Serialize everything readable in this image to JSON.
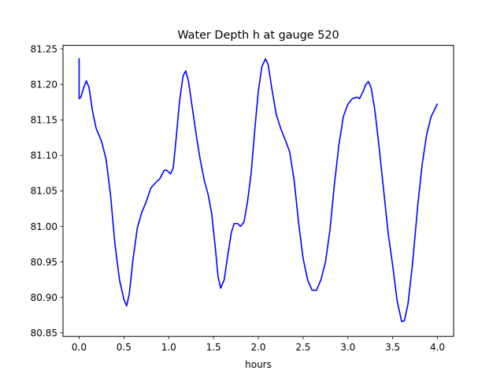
{
  "chart_data": {
    "type": "line",
    "title": "Water Depth h at gauge 520",
    "xlabel": "hours",
    "ylabel": "",
    "xlim": [
      -0.18,
      4.18
    ],
    "ylim": [
      80.845,
      81.255
    ],
    "x_ticks": [
      0,
      0.5,
      1,
      1.5,
      2,
      2.5,
      3,
      3.5,
      4
    ],
    "x_tick_labels": [
      "0.0",
      "0.5",
      "1.0",
      "1.5",
      "2.0",
      "2.5",
      "3.0",
      "3.5",
      "4.0"
    ],
    "y_ticks": [
      80.85,
      80.9,
      80.95,
      81.0,
      81.05,
      81.1,
      81.15,
      81.2,
      81.25
    ],
    "y_tick_labels": [
      "80.85",
      "80.90",
      "80.95",
      "81.00",
      "81.05",
      "81.10",
      "81.15",
      "81.20",
      "81.25"
    ],
    "grid": false,
    "legend": "none",
    "series": [
      {
        "color": "#0000ff",
        "points": [
          [
            0.0,
            81.237
          ],
          [
            0.0,
            81.18
          ],
          [
            0.02,
            81.182
          ],
          [
            0.05,
            81.195
          ],
          [
            0.08,
            81.205
          ],
          [
            0.11,
            81.196
          ],
          [
            0.15,
            81.162
          ],
          [
            0.19,
            81.138
          ],
          [
            0.25,
            81.12
          ],
          [
            0.3,
            81.095
          ],
          [
            0.35,
            81.045
          ],
          [
            0.4,
            80.975
          ],
          [
            0.45,
            80.925
          ],
          [
            0.5,
            80.897
          ],
          [
            0.53,
            80.888
          ],
          [
            0.56,
            80.905
          ],
          [
            0.6,
            80.952
          ],
          [
            0.65,
            80.998
          ],
          [
            0.7,
            81.02
          ],
          [
            0.75,
            81.035
          ],
          [
            0.8,
            81.054
          ],
          [
            0.85,
            81.061
          ],
          [
            0.9,
            81.067
          ],
          [
            0.95,
            81.079
          ],
          [
            0.98,
            81.079
          ],
          [
            1.02,
            81.074
          ],
          [
            1.05,
            81.082
          ],
          [
            1.08,
            81.12
          ],
          [
            1.12,
            81.175
          ],
          [
            1.16,
            81.212
          ],
          [
            1.19,
            81.219
          ],
          [
            1.22,
            81.205
          ],
          [
            1.26,
            81.17
          ],
          [
            1.3,
            81.135
          ],
          [
            1.35,
            81.095
          ],
          [
            1.4,
            81.063
          ],
          [
            1.44,
            81.045
          ],
          [
            1.48,
            81.018
          ],
          [
            1.52,
            80.97
          ],
          [
            1.55,
            80.93
          ],
          [
            1.58,
            80.913
          ],
          [
            1.62,
            80.925
          ],
          [
            1.66,
            80.96
          ],
          [
            1.7,
            80.992
          ],
          [
            1.73,
            81.004
          ],
          [
            1.77,
            81.004
          ],
          [
            1.8,
            81.0
          ],
          [
            1.84,
            81.006
          ],
          [
            1.88,
            81.035
          ],
          [
            1.92,
            81.075
          ],
          [
            1.96,
            81.135
          ],
          [
            2.0,
            81.19
          ],
          [
            2.04,
            81.225
          ],
          [
            2.08,
            81.236
          ],
          [
            2.11,
            81.228
          ],
          [
            2.15,
            81.195
          ],
          [
            2.2,
            81.158
          ],
          [
            2.25,
            81.138
          ],
          [
            2.3,
            81.122
          ],
          [
            2.35,
            81.105
          ],
          [
            2.4,
            81.065
          ],
          [
            2.45,
            81.005
          ],
          [
            2.5,
            80.955
          ],
          [
            2.55,
            80.925
          ],
          [
            2.6,
            80.91
          ],
          [
            2.65,
            80.91
          ],
          [
            2.7,
            80.925
          ],
          [
            2.75,
            80.95
          ],
          [
            2.8,
            80.995
          ],
          [
            2.85,
            81.06
          ],
          [
            2.9,
            81.115
          ],
          [
            2.95,
            81.155
          ],
          [
            3.0,
            81.172
          ],
          [
            3.05,
            81.18
          ],
          [
            3.1,
            81.182
          ],
          [
            3.13,
            81.18
          ],
          [
            3.17,
            81.19
          ],
          [
            3.2,
            81.2
          ],
          [
            3.23,
            81.204
          ],
          [
            3.26,
            81.195
          ],
          [
            3.3,
            81.165
          ],
          [
            3.35,
            81.11
          ],
          [
            3.4,
            81.05
          ],
          [
            3.45,
            80.99
          ],
          [
            3.5,
            80.945
          ],
          [
            3.55,
            80.895
          ],
          [
            3.6,
            80.866
          ],
          [
            3.63,
            80.867
          ],
          [
            3.67,
            80.89
          ],
          [
            3.72,
            80.945
          ],
          [
            3.78,
            81.03
          ],
          [
            3.83,
            81.088
          ],
          [
            3.88,
            81.13
          ],
          [
            3.93,
            81.155
          ],
          [
            3.97,
            81.165
          ],
          [
            4.0,
            81.173
          ]
        ]
      }
    ]
  }
}
